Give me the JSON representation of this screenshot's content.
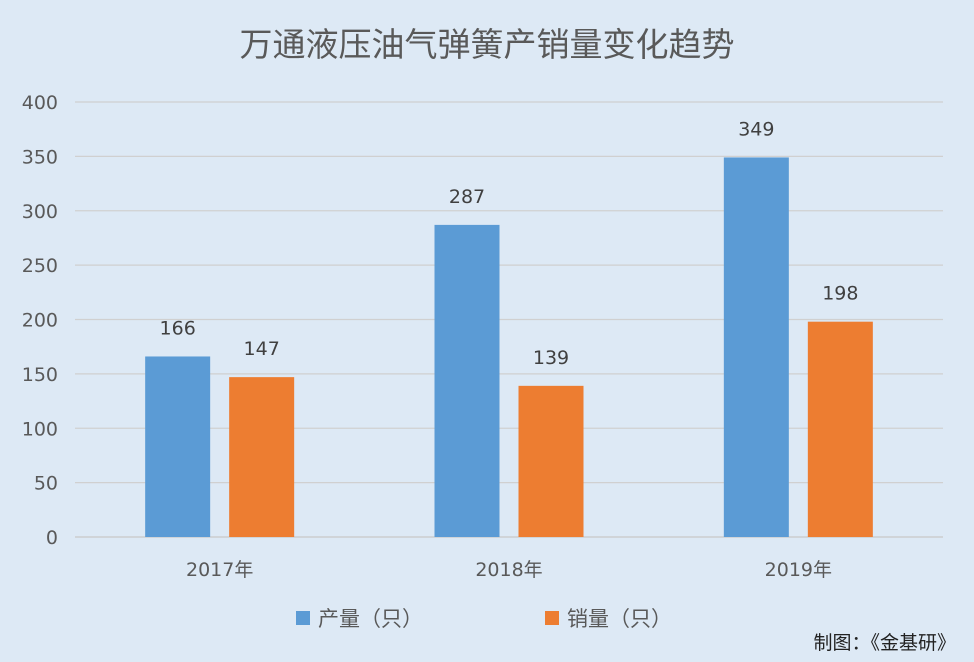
{
  "chart_data": {
    "type": "bar",
    "title": "万通液压油气弹簧产销量变化趋势",
    "categories": [
      "2017年",
      "2018年",
      "2019年"
    ],
    "series": [
      {
        "name": "产量（只）",
        "values": [
          166,
          287,
          349
        ],
        "color": "#5b9bd5"
      },
      {
        "name": "销量（只）",
        "values": [
          147,
          139,
          198
        ],
        "color": "#ed7d31"
      }
    ],
    "ylim": [
      0,
      400
    ],
    "yticks": [
      0,
      50,
      100,
      150,
      200,
      250,
      300,
      350,
      400
    ],
    "grid": true,
    "legend": "bottom",
    "xlabel": "",
    "ylabel": ""
  },
  "credit": "制图：《金基研》"
}
